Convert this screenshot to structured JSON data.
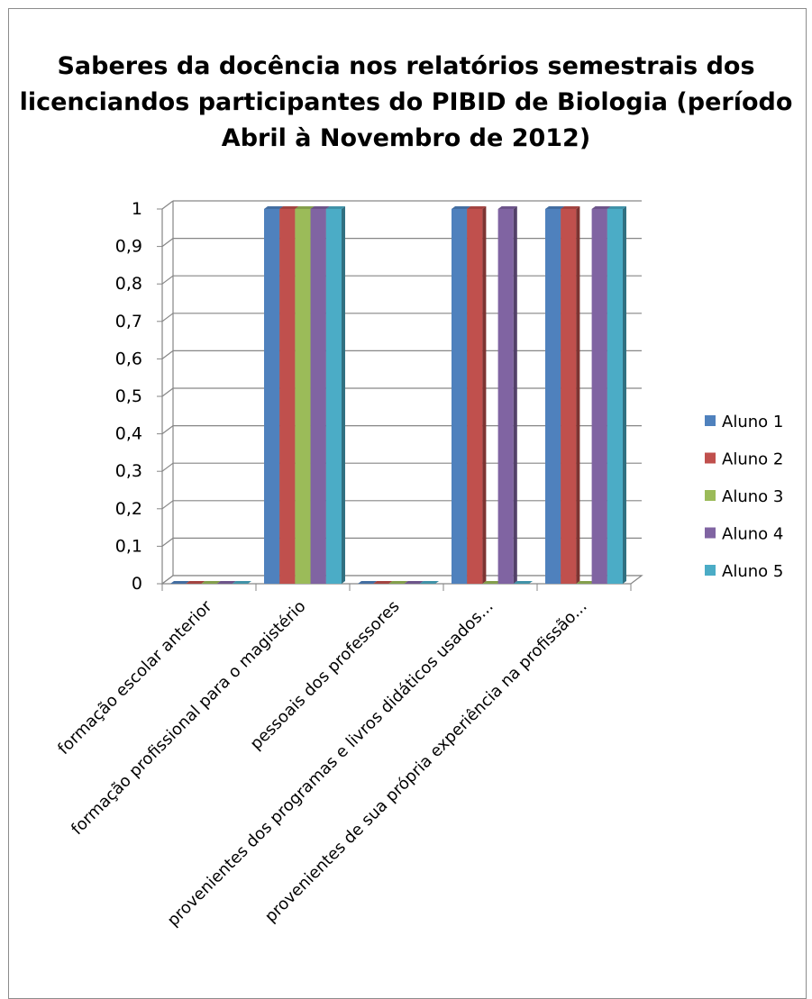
{
  "chart_data": {
    "type": "bar",
    "title_lines": [
      "Saberes da docência nos relatórios semestrais dos",
      "licenciandos participantes do PIBID de Biologia (período",
      "Abril à Novembro de 2012)"
    ],
    "categories": [
      "formação escolar anterior",
      "formação profissional para o magistério",
      "pessoais dos professores",
      "provenientes dos programas e livros didáticos usados...",
      "provenientes de sua própria experiência na profissão..."
    ],
    "y_ticks": [
      "0",
      "0,1",
      "0,2",
      "0,3",
      "0,4",
      "0,5",
      "0,6",
      "0,7",
      "0,8",
      "0,9",
      "1"
    ],
    "ylim": [
      0,
      1
    ],
    "grid": true,
    "legend_position": "right",
    "series": [
      {
        "name": "Aluno 1",
        "color": "#4f81bd",
        "values": [
          0,
          1,
          0,
          1,
          1
        ]
      },
      {
        "name": "Aluno 2",
        "color": "#c0504d",
        "values": [
          0,
          1,
          0,
          1,
          1
        ]
      },
      {
        "name": "Aluno 3",
        "color": "#9bbb59",
        "values": [
          0,
          1,
          0,
          0,
          0
        ]
      },
      {
        "name": "Aluno 4",
        "color": "#8064a2",
        "values": [
          0,
          1,
          0,
          1,
          1
        ]
      },
      {
        "name": "Aluno 5",
        "color": "#4bacc6",
        "values": [
          0,
          1,
          0,
          0,
          1
        ]
      }
    ]
  }
}
